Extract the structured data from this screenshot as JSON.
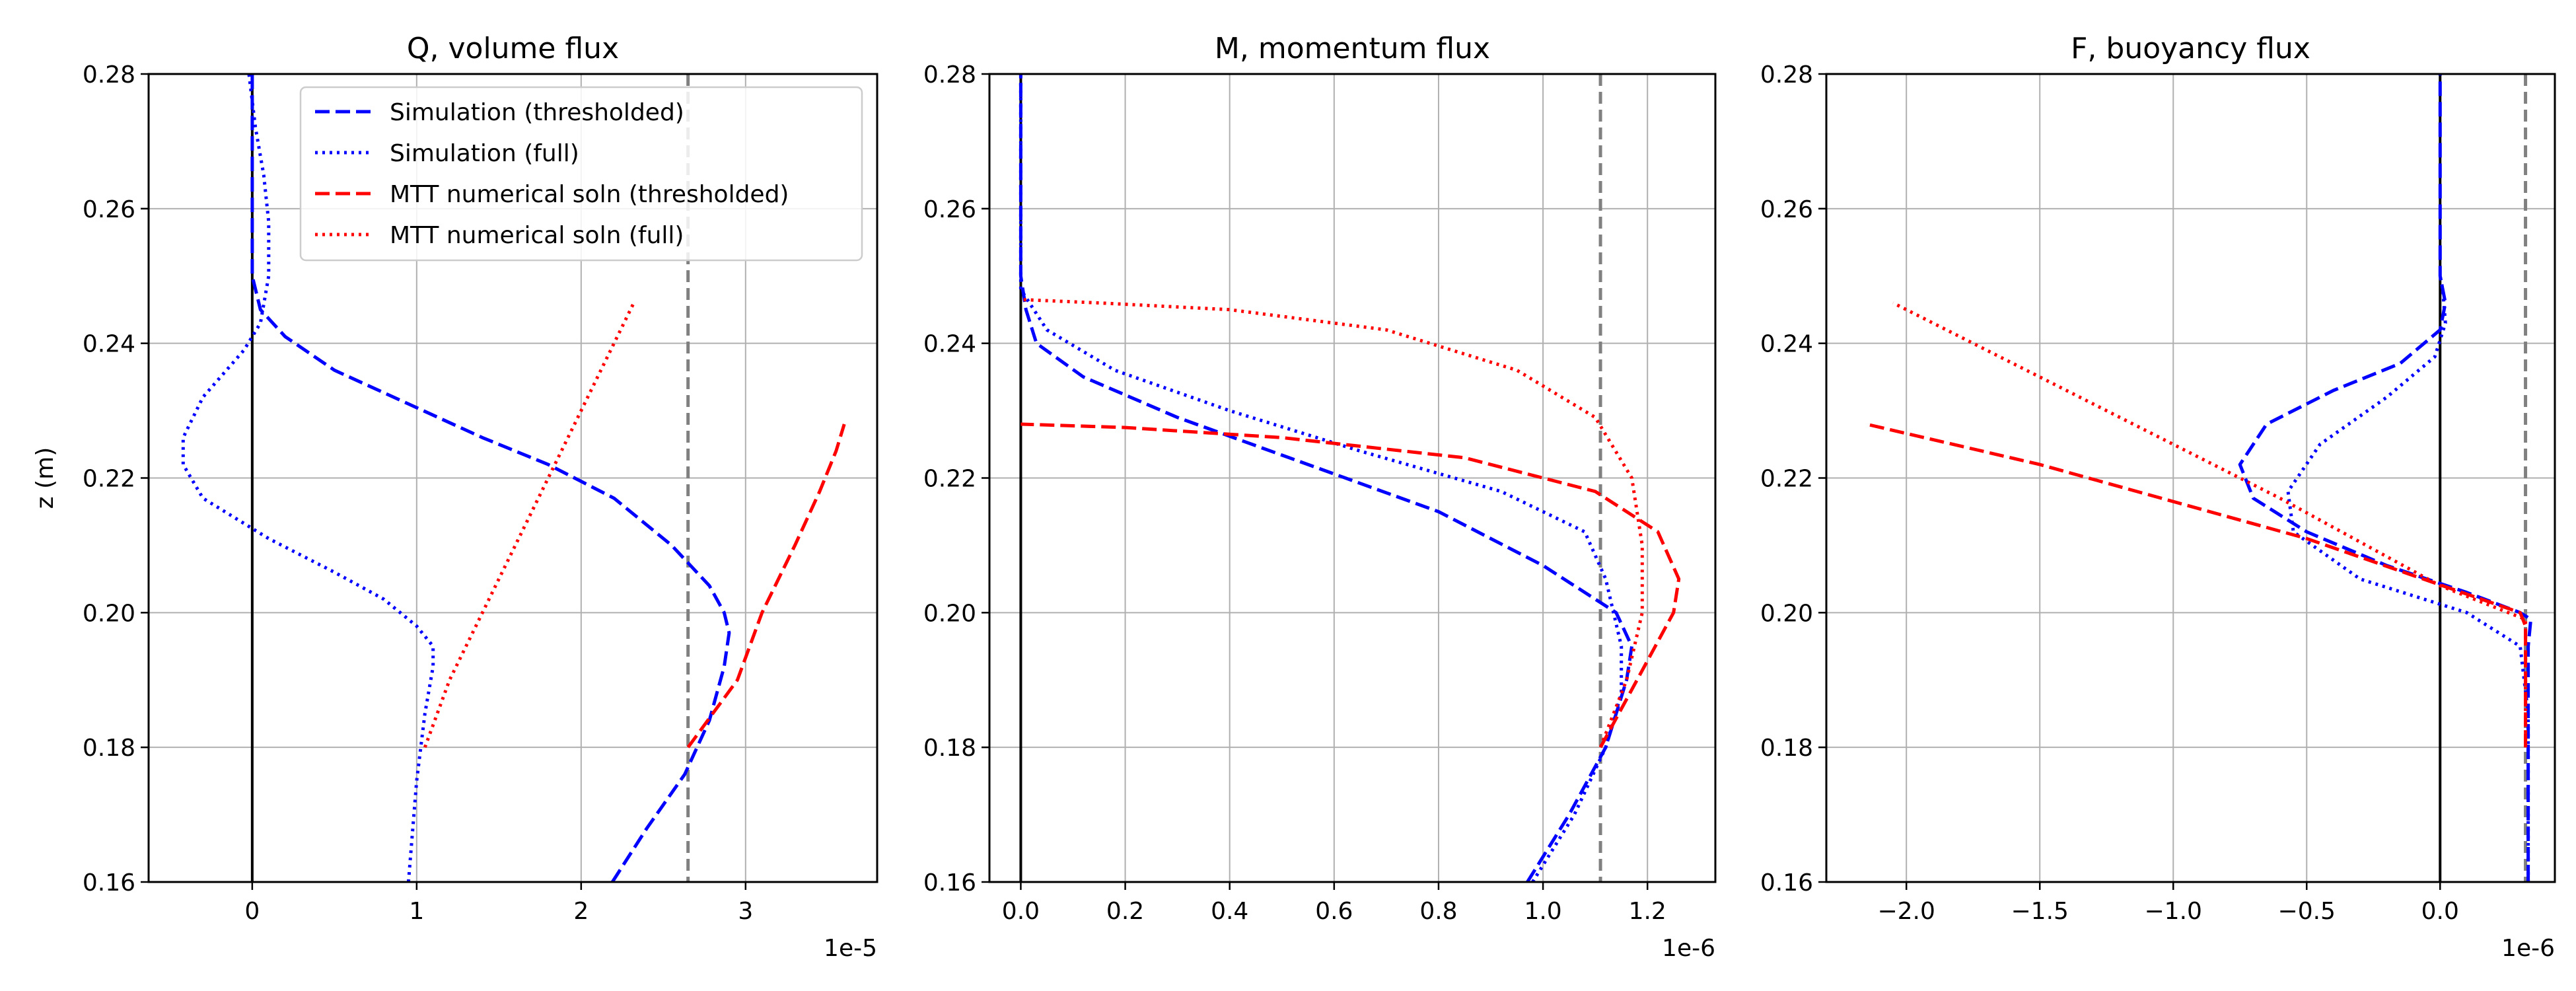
{
  "chart_data": [
    {
      "type": "line",
      "title": "Q, volume flux",
      "xlabel": "",
      "ylabel": "z (m)",
      "offset_text": "1e-5",
      "x_scale": 1e-05,
      "xlim": [
        -0.63,
        3.8
      ],
      "ylim": [
        0.16,
        0.28
      ],
      "xticks": [
        0,
        1,
        2,
        3
      ],
      "xtick_labels": [
        "0",
        "1",
        "2",
        "3"
      ],
      "yticks": [
        0.16,
        0.18,
        0.2,
        0.22,
        0.24,
        0.26,
        0.28
      ],
      "ytick_labels": [
        "0.16",
        "0.18",
        "0.20",
        "0.22",
        "0.24",
        "0.26",
        "0.28"
      ],
      "grid": true,
      "legend_position": "top-right",
      "vlines": [
        {
          "x": 0,
          "style": "solid",
          "color": "#000000"
        },
        {
          "x": 2.65,
          "style": "dashed",
          "color": "#808080"
        }
      ],
      "series": [
        {
          "name": "Simulation (thresholded)",
          "color": "#0000ff",
          "style": "dashed",
          "points": [
            [
              2.19,
              0.16
            ],
            [
              2.4,
              0.168
            ],
            [
              2.63,
              0.176
            ],
            [
              2.78,
              0.184
            ],
            [
              2.87,
              0.192
            ],
            [
              2.9,
              0.197
            ],
            [
              2.87,
              0.2
            ],
            [
              2.78,
              0.204
            ],
            [
              2.55,
              0.21
            ],
            [
              2.2,
              0.217
            ],
            [
              1.8,
              0.222
            ],
            [
              1.4,
              0.226
            ],
            [
              0.95,
              0.231
            ],
            [
              0.5,
              0.236
            ],
            [
              0.2,
              0.241
            ],
            [
              0.05,
              0.245
            ],
            [
              0.0,
              0.25
            ],
            [
              0.0,
              0.28
            ]
          ]
        },
        {
          "name": "Simulation (full)",
          "color": "#0000ff",
          "style": "dotted",
          "points": [
            [
              0.95,
              0.16
            ],
            [
              1.0,
              0.175
            ],
            [
              1.05,
              0.185
            ],
            [
              1.1,
              0.192
            ],
            [
              1.1,
              0.195
            ],
            [
              1.0,
              0.198
            ],
            [
              0.8,
              0.202
            ],
            [
              0.5,
              0.206
            ],
            [
              0.1,
              0.211
            ],
            [
              -0.3,
              0.217
            ],
            [
              -0.42,
              0.222
            ],
            [
              -0.42,
              0.226
            ],
            [
              -0.3,
              0.232
            ],
            [
              -0.05,
              0.239
            ],
            [
              0.05,
              0.243
            ],
            [
              0.1,
              0.25
            ],
            [
              0.1,
              0.258
            ],
            [
              0.07,
              0.265
            ],
            [
              0.02,
              0.272
            ],
            [
              -0.02,
              0.28
            ]
          ]
        },
        {
          "name": "MTT numerical soln (thresholded)",
          "color": "#ff0000",
          "style": "dashed",
          "points": [
            [
              2.65,
              0.18
            ],
            [
              2.8,
              0.185
            ],
            [
              2.95,
              0.19
            ],
            [
              3.1,
              0.2
            ],
            [
              3.3,
              0.21
            ],
            [
              3.45,
              0.218
            ],
            [
              3.55,
              0.224
            ],
            [
              3.6,
              0.228
            ]
          ]
        },
        {
          "name": "MTT numerical soln (full)",
          "color": "#ff0000",
          "style": "dotted",
          "points": [
            [
              1.05,
              0.18
            ],
            [
              1.2,
              0.19
            ],
            [
              1.4,
              0.2
            ],
            [
              1.6,
              0.21
            ],
            [
              1.8,
              0.22
            ],
            [
              2.0,
              0.23
            ],
            [
              2.2,
              0.24
            ],
            [
              2.32,
              0.246
            ]
          ]
        }
      ]
    },
    {
      "type": "line",
      "title": "M, momentum flux",
      "xlabel": "",
      "ylabel": "",
      "offset_text": "1e-6",
      "x_scale": 1e-06,
      "xlim": [
        -0.06,
        1.33
      ],
      "ylim": [
        0.16,
        0.28
      ],
      "xticks": [
        0.0,
        0.2,
        0.4,
        0.6,
        0.8,
        1.0,
        1.2
      ],
      "xtick_labels": [
        "0.0",
        "0.2",
        "0.4",
        "0.6",
        "0.8",
        "1.0",
        "1.2"
      ],
      "yticks": [
        0.16,
        0.18,
        0.2,
        0.22,
        0.24,
        0.26,
        0.28
      ],
      "ytick_labels": [
        "0.16",
        "0.18",
        "0.20",
        "0.22",
        "0.24",
        "0.26",
        "0.28"
      ],
      "grid": true,
      "legend_position": "",
      "vlines": [
        {
          "x": 0,
          "style": "solid",
          "color": "#000000"
        },
        {
          "x": 1.11,
          "style": "dashed",
          "color": "#808080"
        }
      ],
      "series": [
        {
          "name": "Simulation (thresholded)",
          "color": "#0000ff",
          "style": "dashed",
          "points": [
            [
              0.97,
              0.16
            ],
            [
              1.05,
              0.17
            ],
            [
              1.12,
              0.18
            ],
            [
              1.16,
              0.19
            ],
            [
              1.17,
              0.195
            ],
            [
              1.14,
              0.2
            ],
            [
              1.0,
              0.207
            ],
            [
              0.8,
              0.215
            ],
            [
              0.55,
              0.222
            ],
            [
              0.3,
              0.229
            ],
            [
              0.12,
              0.235
            ],
            [
              0.03,
              0.24
            ],
            [
              0.01,
              0.245
            ],
            [
              0.0,
              0.25
            ],
            [
              0.0,
              0.28
            ]
          ]
        },
        {
          "name": "Simulation (full)",
          "color": "#0000ff",
          "style": "dotted",
          "points": [
            [
              0.98,
              0.16
            ],
            [
              1.06,
              0.17
            ],
            [
              1.12,
              0.18
            ],
            [
              1.15,
              0.188
            ],
            [
              1.15,
              0.195
            ],
            [
              1.12,
              0.205
            ],
            [
              1.08,
              0.212
            ],
            [
              0.92,
              0.218
            ],
            [
              0.65,
              0.224
            ],
            [
              0.4,
              0.23
            ],
            [
              0.18,
              0.236
            ],
            [
              0.05,
              0.242
            ],
            [
              0.0,
              0.248
            ],
            [
              0.0,
              0.28
            ]
          ]
        },
        {
          "name": "MTT numerical soln (thresholded)",
          "color": "#ff0000",
          "style": "dashed",
          "points": [
            [
              1.11,
              0.18
            ],
            [
              1.18,
              0.19
            ],
            [
              1.25,
              0.2
            ],
            [
              1.26,
              0.205
            ],
            [
              1.22,
              0.212
            ],
            [
              1.1,
              0.218
            ],
            [
              0.85,
              0.223
            ],
            [
              0.5,
              0.226
            ],
            [
              0.2,
              0.2275
            ],
            [
              0.0,
              0.228
            ]
          ]
        },
        {
          "name": "MTT numerical soln (full)",
          "color": "#ff0000",
          "style": "dotted",
          "points": [
            [
              1.11,
              0.18
            ],
            [
              1.16,
              0.19
            ],
            [
              1.19,
              0.2
            ],
            [
              1.19,
              0.21
            ],
            [
              1.17,
              0.22
            ],
            [
              1.1,
              0.229
            ],
            [
              0.95,
              0.236
            ],
            [
              0.7,
              0.242
            ],
            [
              0.4,
              0.245
            ],
            [
              0.15,
              0.246
            ],
            [
              0.0,
              0.2465
            ]
          ]
        }
      ]
    },
    {
      "type": "line",
      "title": "F, buoyancy flux",
      "xlabel": "",
      "ylabel": "",
      "offset_text": "1e-6",
      "x_scale": 1e-06,
      "xlim": [
        -2.3,
        0.43
      ],
      "ylim": [
        0.16,
        0.28
      ],
      "xticks": [
        -2.0,
        -1.5,
        -1.0,
        -0.5,
        0.0
      ],
      "xtick_labels": [
        "−2.0",
        "−1.5",
        "−1.0",
        "−0.5",
        "0.0"
      ],
      "yticks": [
        0.16,
        0.18,
        0.2,
        0.22,
        0.24,
        0.26,
        0.28
      ],
      "ytick_labels": [
        "0.16",
        "0.18",
        "0.20",
        "0.22",
        "0.24",
        "0.26",
        "0.28"
      ],
      "grid": true,
      "legend_position": "",
      "vlines": [
        {
          "x": 0,
          "style": "solid",
          "color": "#000000"
        },
        {
          "x": 0.32,
          "style": "dashed",
          "color": "#808080"
        }
      ],
      "series": [
        {
          "name": "Simulation (thresholded)",
          "color": "#0000ff",
          "style": "dashed",
          "points": [
            [
              0.33,
              0.16
            ],
            [
              0.33,
              0.195
            ],
            [
              0.34,
              0.199
            ],
            [
              0.3,
              0.2
            ],
            [
              0.1,
              0.203
            ],
            [
              -0.2,
              0.207
            ],
            [
              -0.5,
              0.212
            ],
            [
              -0.7,
              0.217
            ],
            [
              -0.75,
              0.222
            ],
            [
              -0.65,
              0.228
            ],
            [
              -0.4,
              0.233
            ],
            [
              -0.15,
              0.237
            ],
            [
              0.0,
              0.242
            ],
            [
              0.02,
              0.246
            ],
            [
              0.0,
              0.25
            ],
            [
              0.0,
              0.28
            ]
          ]
        },
        {
          "name": "Simulation (full)",
          "color": "#0000ff",
          "style": "dotted",
          "points": [
            [
              0.33,
              0.16
            ],
            [
              0.33,
              0.185
            ],
            [
              0.3,
              0.195
            ],
            [
              0.1,
              0.2
            ],
            [
              -0.3,
              0.205
            ],
            [
              -0.55,
              0.212
            ],
            [
              -0.57,
              0.218
            ],
            [
              -0.45,
              0.225
            ],
            [
              -0.2,
              0.232
            ],
            [
              -0.02,
              0.238
            ],
            [
              0.02,
              0.243
            ],
            [
              0.01,
              0.248
            ],
            [
              0.0,
              0.25
            ]
          ]
        },
        {
          "name": "MTT numerical soln (thresholded)",
          "color": "#ff0000",
          "style": "dashed",
          "points": [
            [
              0.32,
              0.18
            ],
            [
              0.32,
              0.198
            ],
            [
              0.3,
              0.2
            ],
            [
              -0.5,
              0.211
            ],
            [
              -1.5,
              0.222
            ],
            [
              -2.15,
              0.228
            ]
          ]
        },
        {
          "name": "MTT numerical soln (full)",
          "color": "#ff0000",
          "style": "dotted",
          "points": [
            [
              0.32,
              0.18
            ],
            [
              0.32,
              0.199
            ],
            [
              0.0,
              0.204
            ],
            [
              -0.6,
              0.217
            ],
            [
              -1.4,
              0.233
            ],
            [
              -2.05,
              0.246
            ]
          ]
        }
      ]
    }
  ],
  "legend": [
    {
      "label": "Simulation (thresholded)",
      "color": "#0000ff",
      "style": "dashed"
    },
    {
      "label": "Simulation (full)",
      "color": "#0000ff",
      "style": "dotted"
    },
    {
      "label": "MTT numerical soln (thresholded)",
      "color": "#ff0000",
      "style": "dashed"
    },
    {
      "label": "MTT numerical soln (full)",
      "color": "#ff0000",
      "style": "dotted"
    }
  ]
}
